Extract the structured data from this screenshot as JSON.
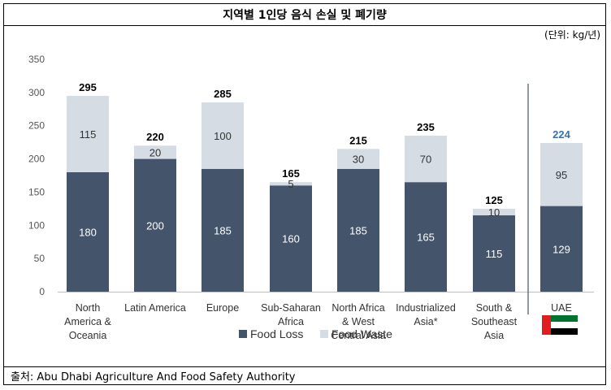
{
  "title": "지역별 1인당 음식 손실 및 폐기량",
  "unit_note": "(단위: kg/년)",
  "source": "출처: Abu Dhabi Agriculture And Food Safety Authority",
  "colors": {
    "food_loss": "#44546a",
    "food_waste": "#d6dce4",
    "total_default": "#000000",
    "total_highlight": "#2e75b6",
    "separator": "#44546a"
  },
  "chart_data": {
    "type": "bar",
    "stacked": true,
    "categories": [
      [
        "North",
        "America &",
        "Oceania"
      ],
      [
        "Latin America"
      ],
      [
        "Europe"
      ],
      [
        "Sub-Saharan",
        "Africa"
      ],
      [
        "North Africa",
        "& West",
        "Central Asia"
      ],
      [
        "Industrialized",
        "Asia*"
      ],
      [
        "South &",
        "Southeast",
        "Asia"
      ],
      [
        "UAE"
      ]
    ],
    "series": [
      {
        "name": "Food Loss",
        "values": [
          180,
          200,
          185,
          160,
          185,
          165,
          115,
          129
        ]
      },
      {
        "name": "Food Waste",
        "values": [
          115,
          20,
          100,
          5,
          30,
          70,
          10,
          95
        ]
      }
    ],
    "totals": [
      295,
      220,
      285,
      165,
      215,
      235,
      125,
      224
    ],
    "highlight_index": 7,
    "ylim": [
      0,
      350
    ],
    "yticks": [
      0,
      50,
      100,
      150,
      200,
      250,
      300,
      350
    ],
    "legend": [
      "Food Loss",
      "Food Waste"
    ],
    "legend_position": "bottom",
    "flag_under": "UAE"
  }
}
